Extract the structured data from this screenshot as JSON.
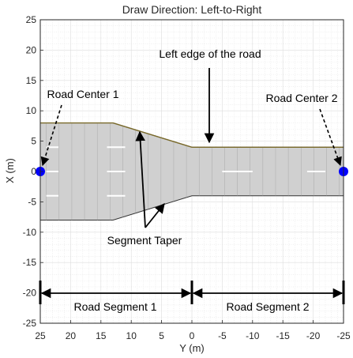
{
  "chart_data": {
    "type": "diagram",
    "title": "Draw Direction: Left-to-Right",
    "xlabel": "Y (m)",
    "ylabel": "X (m)",
    "xlim": [
      25,
      -25
    ],
    "ylim": [
      -25,
      25
    ],
    "xticks": [
      25,
      20,
      15,
      10,
      5,
      0,
      -5,
      -10,
      -15,
      -20,
      -25
    ],
    "yticks": [
      25,
      20,
      15,
      10,
      5,
      0,
      -5,
      -10,
      -15,
      -20,
      -25
    ],
    "grid": "minor",
    "road_outline": [
      [
        25,
        8
      ],
      [
        13,
        8
      ],
      [
        0,
        4
      ],
      [
        -25,
        4
      ],
      [
        -25,
        -4
      ],
      [
        0,
        -4
      ],
      [
        13,
        -8
      ],
      [
        25,
        -8
      ]
    ],
    "lane_dividers_y": [
      4,
      0,
      -4
    ],
    "road_centers": [
      {
        "label": "Road Center 1",
        "y": 25,
        "x": 0
      },
      {
        "label": "Road Center 2",
        "y": -25,
        "x": 0
      }
    ],
    "annotations": {
      "left_edge": "Left edge of the road",
      "taper": "Segment Taper",
      "segment1": "Road Segment 1",
      "segment2": "Road Segment 2"
    },
    "segment_bounds_y": [
      25,
      0,
      -25
    ],
    "colors": {
      "road_fill": "#d0d0d0",
      "road_edge": "#7a6a2a",
      "lane_marking": "#ffffff",
      "center_marker": "#0000ff",
      "grid": "#e6e6e6"
    }
  }
}
